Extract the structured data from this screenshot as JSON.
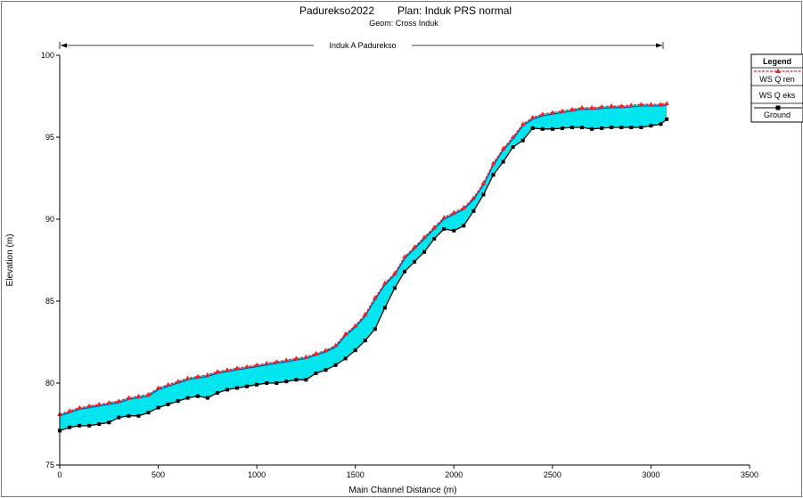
{
  "chart_data": {
    "type": "line",
    "title_project": "Padurekso2022",
    "title_plan": "Plan: Induk PRS normal",
    "subtitle": "Geom: Cross Induk",
    "reach_label": "Induk A Padurekso",
    "xlabel": "Main Channel Distance (m)",
    "ylabel": "Elevation (m)",
    "xlim": [
      0,
      3500
    ],
    "ylim": [
      75,
      100
    ],
    "xticks": [
      0,
      500,
      1000,
      1500,
      2000,
      2500,
      3000,
      3500
    ],
    "yticks": [
      75,
      80,
      85,
      90,
      95,
      100
    ],
    "grid": false,
    "legend_position": "right",
    "colors": {
      "ws_q_ren": "#e8232a",
      "ws_q_eks": "#1f2a8a",
      "ground": "#000000",
      "water_fill": "#00e5ee"
    },
    "legend": {
      "title": "Legend",
      "entries": [
        "WS  Q ren",
        "WS  Q eks",
        "Ground"
      ]
    },
    "series": [
      {
        "name": "WS  Q ren",
        "x": [
          0,
          50,
          100,
          150,
          200,
          250,
          300,
          350,
          400,
          450,
          500,
          550,
          600,
          650,
          700,
          750,
          800,
          850,
          900,
          950,
          1000,
          1050,
          1100,
          1150,
          1200,
          1250,
          1300,
          1350,
          1400,
          1450,
          1500,
          1550,
          1600,
          1650,
          1700,
          1750,
          1800,
          1850,
          1900,
          1950,
          2000,
          2050,
          2100,
          2150,
          2200,
          2250,
          2300,
          2350,
          2400,
          2450,
          2500,
          2550,
          2600,
          2650,
          2700,
          2750,
          2800,
          2850,
          2900,
          2950,
          3000,
          3050,
          3080
        ],
        "y": [
          78.1,
          78.3,
          78.5,
          78.6,
          78.7,
          78.8,
          78.9,
          79.1,
          79.2,
          79.3,
          79.7,
          79.9,
          80.1,
          80.3,
          80.4,
          80.5,
          80.7,
          80.8,
          80.9,
          81.0,
          81.1,
          81.2,
          81.3,
          81.4,
          81.5,
          81.6,
          81.8,
          82.0,
          82.3,
          83.0,
          83.5,
          84.2,
          85.2,
          86.1,
          86.7,
          87.7,
          88.3,
          88.9,
          89.5,
          90.1,
          90.4,
          90.7,
          91.3,
          92.2,
          93.4,
          94.3,
          95.0,
          95.8,
          96.2,
          96.4,
          96.5,
          96.6,
          96.7,
          96.8,
          96.8,
          96.85,
          96.9,
          96.9,
          96.95,
          97.0,
          97.0,
          97.0,
          97.05
        ]
      },
      {
        "name": "WS  Q eks",
        "x": [
          0,
          50,
          100,
          150,
          200,
          250,
          300,
          350,
          400,
          450,
          500,
          550,
          600,
          650,
          700,
          750,
          800,
          850,
          900,
          950,
          1000,
          1050,
          1100,
          1150,
          1200,
          1250,
          1300,
          1350,
          1400,
          1450,
          1500,
          1550,
          1600,
          1650,
          1700,
          1750,
          1800,
          1850,
          1900,
          1950,
          2000,
          2050,
          2100,
          2150,
          2200,
          2250,
          2300,
          2350,
          2400,
          2450,
          2500,
          2550,
          2600,
          2650,
          2700,
          2750,
          2800,
          2850,
          2900,
          2950,
          3000,
          3050,
          3080
        ],
        "y": [
          78.0,
          78.2,
          78.4,
          78.5,
          78.6,
          78.7,
          78.8,
          79.0,
          79.1,
          79.2,
          79.6,
          79.8,
          80.0,
          80.2,
          80.3,
          80.4,
          80.6,
          80.7,
          80.8,
          80.9,
          81.0,
          81.1,
          81.2,
          81.3,
          81.4,
          81.5,
          81.7,
          81.9,
          82.2,
          82.9,
          83.4,
          84.1,
          85.1,
          86.0,
          86.6,
          87.6,
          88.2,
          88.8,
          89.4,
          90.0,
          90.3,
          90.6,
          91.2,
          92.1,
          93.3,
          94.2,
          94.9,
          95.7,
          96.1,
          96.3,
          96.4,
          96.5,
          96.6,
          96.7,
          96.7,
          96.75,
          96.8,
          96.8,
          96.85,
          96.9,
          96.9,
          96.9,
          96.95
        ]
      },
      {
        "name": "Ground",
        "x": [
          0,
          50,
          100,
          150,
          200,
          250,
          300,
          350,
          400,
          450,
          500,
          550,
          600,
          650,
          700,
          750,
          800,
          850,
          900,
          950,
          1000,
          1050,
          1100,
          1150,
          1200,
          1250,
          1300,
          1350,
          1400,
          1450,
          1500,
          1550,
          1600,
          1650,
          1700,
          1750,
          1800,
          1850,
          1900,
          1950,
          2000,
          2050,
          2100,
          2150,
          2200,
          2250,
          2300,
          2350,
          2400,
          2450,
          2500,
          2550,
          2600,
          2650,
          2700,
          2750,
          2800,
          2850,
          2900,
          2950,
          3000,
          3050,
          3080
        ],
        "y": [
          77.1,
          77.3,
          77.4,
          77.4,
          77.5,
          77.6,
          77.9,
          78.0,
          78.0,
          78.2,
          78.5,
          78.7,
          78.9,
          79.1,
          79.2,
          79.1,
          79.4,
          79.6,
          79.7,
          79.8,
          79.9,
          80.0,
          80.0,
          80.1,
          80.2,
          80.2,
          80.6,
          80.8,
          81.1,
          81.5,
          82.0,
          82.6,
          83.3,
          84.6,
          85.8,
          86.8,
          87.4,
          88.0,
          88.8,
          89.4,
          89.3,
          89.6,
          90.5,
          91.5,
          92.7,
          93.5,
          94.4,
          94.8,
          95.55,
          95.5,
          95.5,
          95.55,
          95.6,
          95.6,
          95.5,
          95.55,
          95.6,
          95.6,
          95.6,
          95.6,
          95.7,
          95.8,
          96.1
        ]
      }
    ]
  }
}
